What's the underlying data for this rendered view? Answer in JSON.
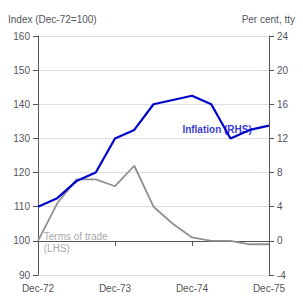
{
  "chart_data": {
    "type": "line",
    "ylabel": "Index (Dec-72=100)",
    "y2label": "Per cent, tty",
    "x": [
      0,
      1,
      2,
      3,
      4,
      5,
      6,
      7,
      8,
      9,
      10,
      11,
      12
    ],
    "xlim": [
      0,
      12
    ],
    "xticks": [
      {
        "value": 0,
        "label": "Dec-72"
      },
      {
        "value": 4,
        "label": "Dec-73"
      },
      {
        "value": 8,
        "label": "Dec-74"
      },
      {
        "value": 12,
        "label": "Dec-75"
      }
    ],
    "ylim": [
      90,
      160
    ],
    "yticks": [
      90,
      100,
      110,
      120,
      130,
      140,
      150,
      160
    ],
    "y2lim": [
      -4,
      24
    ],
    "y2ticks": [
      -4,
      0,
      4,
      8,
      12,
      16,
      20,
      24
    ],
    "grid": true,
    "series": [
      {
        "color": "#909090",
        "axis": "y",
        "values": [
          100,
          111,
          118,
          118,
          116,
          122,
          110,
          105,
          101,
          100,
          100,
          99,
          99
        ]
      },
      {
        "color": "#0000cc",
        "axis": "y2",
        "values": [
          4,
          5,
          7,
          8,
          12,
          13,
          16,
          16.5,
          17,
          16,
          12,
          13,
          13.5
        ]
      }
    ],
    "annotations": [
      {
        "text": "Terms of trade\n(LHS)",
        "x": 0.3,
        "y": 96,
        "color": "#909090"
      },
      {
        "text": "Inflation (RHS)",
        "x": 7.5,
        "y": 131,
        "color": "#0000cc"
      }
    ]
  }
}
